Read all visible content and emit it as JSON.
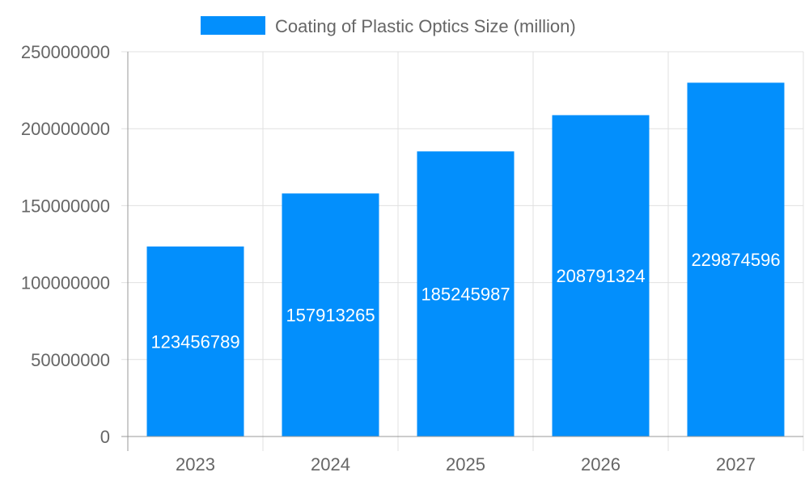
{
  "chart_data": {
    "type": "bar",
    "categories": [
      "2023",
      "2024",
      "2025",
      "2026",
      "2027"
    ],
    "series": [
      {
        "name": "Coating of Plastic Optics Size (million)",
        "values": [
          123456789,
          157913265,
          185245987,
          208791324,
          229874596
        ],
        "color": "#038ffc"
      }
    ],
    "data_labels": [
      "123456789",
      "157913265",
      "185245987",
      "208791324",
      "229874596"
    ],
    "ylim": [
      0,
      250000000
    ],
    "yticks": [
      "0",
      "50000000",
      "100000000",
      "150000000",
      "200000000",
      "250000000"
    ],
    "ytick_values": [
      0,
      50000000,
      100000000,
      150000000,
      200000000,
      250000000
    ],
    "grid": true,
    "legend_position": "top",
    "title": "",
    "xlabel": "",
    "ylabel": ""
  }
}
